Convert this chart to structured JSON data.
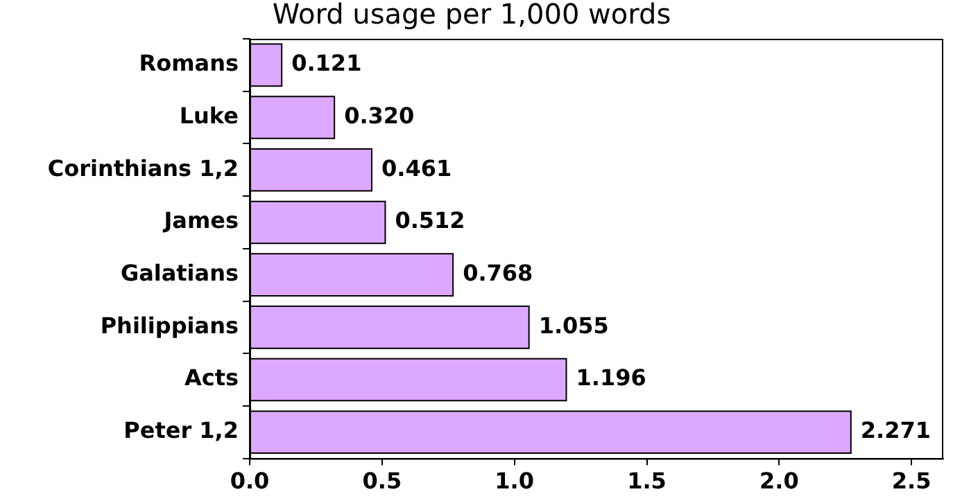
{
  "chart_data": {
    "type": "bar",
    "orientation": "horizontal",
    "title": "Word usage per 1,000 words",
    "categories": [
      "Romans",
      "Luke",
      "Corinthians 1,2",
      "James",
      "Galatians",
      "Philippians",
      "Acts",
      "Peter 1,2"
    ],
    "values": [
      0.121,
      0.32,
      0.461,
      0.512,
      0.768,
      1.055,
      1.196,
      2.271
    ],
    "value_labels": [
      "0.121",
      "0.320",
      "0.461",
      "0.512",
      "0.768",
      "1.055",
      "1.196",
      "2.271"
    ],
    "color": "#dda8ff",
    "xlim": [
      0,
      2.62
    ],
    "xticks": [
      {
        "value": 0,
        "label": "0.0"
      },
      {
        "value": 0.5,
        "label": "0.5"
      },
      {
        "value": 1,
        "label": "1.0"
      },
      {
        "value": 1.5,
        "label": "1.5"
      },
      {
        "value": 2,
        "label": "2.0"
      },
      {
        "value": 2.5,
        "label": "2.5"
      }
    ],
    "grid": false,
    "legend": false
  }
}
